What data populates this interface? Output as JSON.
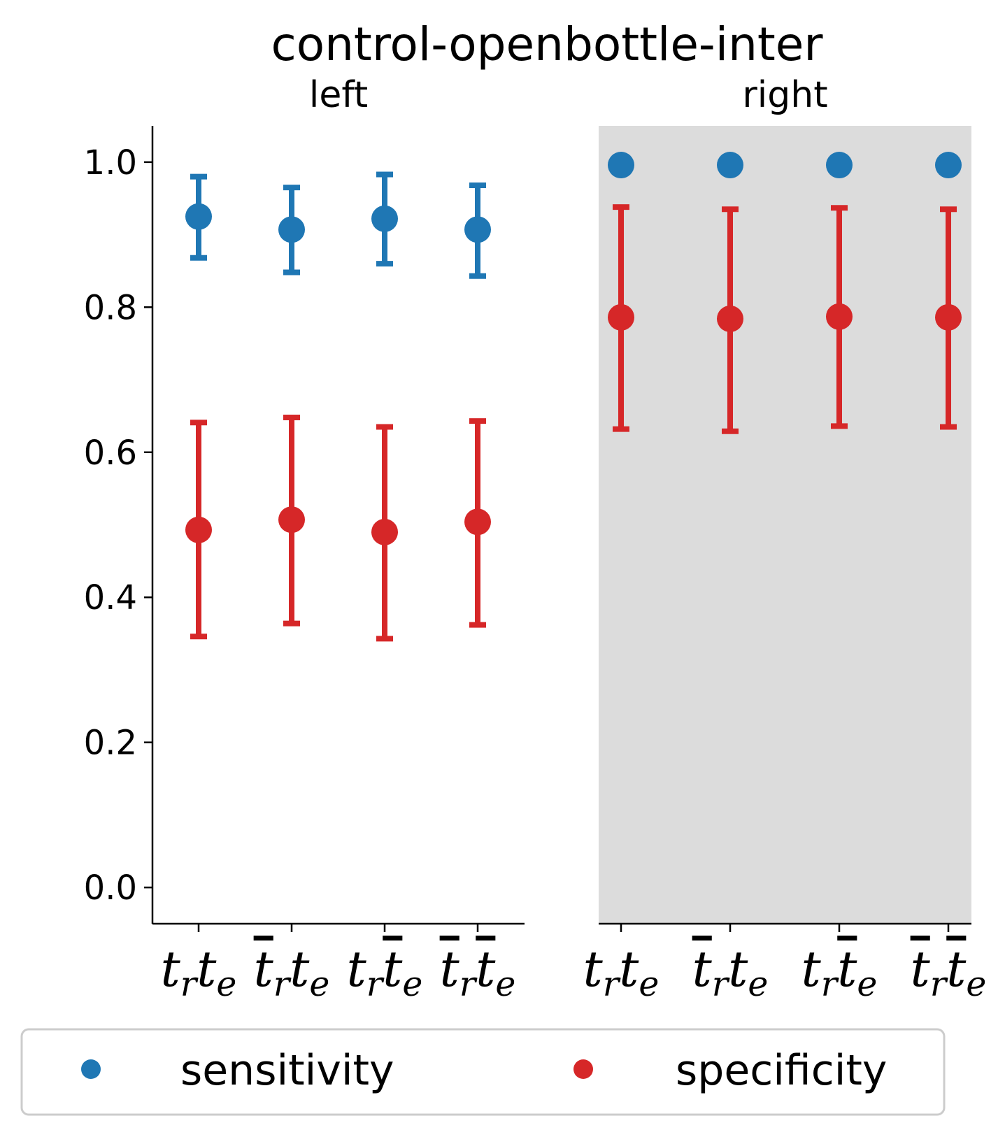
{
  "chart_data": {
    "type": "scatter",
    "title": "control-openbottle-inter",
    "panels": [
      {
        "subtitle": "left",
        "shaded": false,
        "categories": [
          {
            "base1": "t",
            "sub1": "r",
            "bar1": false,
            "base2": "t",
            "sub2": "e",
            "bar2": false
          },
          {
            "base1": "t",
            "sub1": "r",
            "bar1": true,
            "base2": "t",
            "sub2": "e",
            "bar2": false
          },
          {
            "base1": "t",
            "sub1": "r",
            "bar1": false,
            "base2": "t",
            "sub2": "e",
            "bar2": true
          },
          {
            "base1": "t",
            "sub1": "r",
            "bar1": true,
            "base2": "t",
            "sub2": "e",
            "bar2": true
          }
        ],
        "series": [
          {
            "name": "sensitivity",
            "values": [
              0.925,
              0.907,
              0.922,
              0.907
            ],
            "lower": [
              0.868,
              0.848,
              0.86,
              0.843
            ],
            "upper": [
              0.98,
              0.965,
              0.983,
              0.968
            ]
          },
          {
            "name": "specificity",
            "values": [
              0.493,
              0.507,
              0.49,
              0.504
            ],
            "lower": [
              0.346,
              0.364,
              0.343,
              0.362
            ],
            "upper": [
              0.641,
              0.648,
              0.635,
              0.643
            ]
          }
        ]
      },
      {
        "subtitle": "right",
        "shaded": true,
        "categories": [
          {
            "base1": "t",
            "sub1": "r",
            "bar1": false,
            "base2": "t",
            "sub2": "e",
            "bar2": false
          },
          {
            "base1": "t",
            "sub1": "r",
            "bar1": true,
            "base2": "t",
            "sub2": "e",
            "bar2": false
          },
          {
            "base1": "t",
            "sub1": "r",
            "bar1": false,
            "base2": "t",
            "sub2": "e",
            "bar2": true
          },
          {
            "base1": "t",
            "sub1": "r",
            "bar1": true,
            "base2": "t",
            "sub2": "e",
            "bar2": true
          }
        ],
        "series": [
          {
            "name": "sensitivity",
            "values": [
              0.996,
              0.996,
              0.996,
              0.996
            ],
            "lower": null,
            "upper": null
          },
          {
            "name": "specificity",
            "values": [
              0.786,
              0.784,
              0.787,
              0.786
            ],
            "lower": [
              0.632,
              0.629,
              0.636,
              0.635
            ],
            "upper": [
              0.938,
              0.935,
              0.937,
              0.935
            ]
          }
        ]
      }
    ],
    "yticks": [
      "0.0",
      "0.2",
      "0.4",
      "0.6",
      "0.8",
      "1.0"
    ],
    "ylim": [
      -0.05,
      1.05
    ],
    "grid": false,
    "legend": {
      "placement": "bottom",
      "entries": [
        {
          "label": "sensitivity",
          "color": "#1f77b4"
        },
        {
          "label": "specificity",
          "color": "#d62728"
        }
      ]
    },
    "colors": {
      "sensitivity": "#1f77b4",
      "specificity": "#d62728",
      "shade": "#dcdcdc"
    }
  }
}
